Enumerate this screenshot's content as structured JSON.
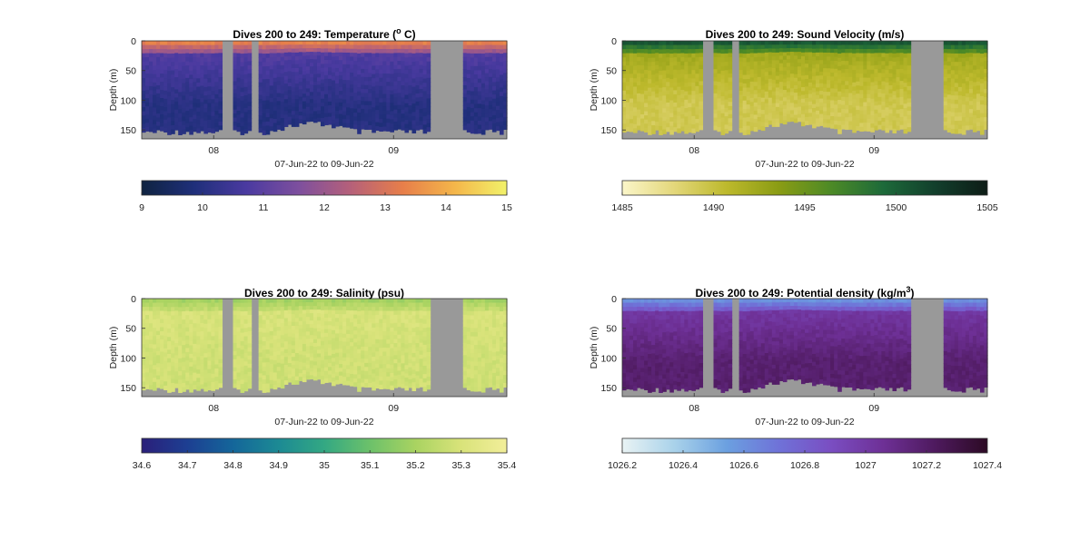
{
  "figure": {
    "background": "#ffffff",
    "gap_color": "#999999"
  },
  "chart_data": [
    {
      "type": "heatmap",
      "title_main": "Dives 200 to 249: Temperature (",
      "title_sup": "o",
      "title_tail": " C)",
      "ylabel": "Depth (m)",
      "xlabel": "07-Jun-22 to 09-Jun-22",
      "y_ticks": [
        "0",
        "50",
        "100",
        "150"
      ],
      "ylim": [
        0,
        165
      ],
      "x_ticks": [
        "08",
        "09"
      ],
      "xlim_days": [
        7.6,
        9.63
      ],
      "colorbar": {
        "min": 9,
        "max": 15,
        "ticks": [
          "9",
          "10",
          "11",
          "12",
          "13",
          "14",
          "15"
        ],
        "colors": [
          "#0f2340",
          "#1f2f7a",
          "#4a3aa0",
          "#7d4f9e",
          "#b5607a",
          "#e77e4a",
          "#f4b64a",
          "#f2f26a"
        ]
      },
      "profile": {
        "surface": 13.6,
        "mid": 10.9,
        "deep": 10.0
      }
    },
    {
      "type": "heatmap",
      "title_main": "Dives 200 to 249: Sound Velocity (m/s)",
      "title_sup": "",
      "title_tail": "",
      "ylabel": "Depth (m)",
      "xlabel": "07-Jun-22 to 09-Jun-22",
      "y_ticks": [
        "0",
        "50",
        "100",
        "150"
      ],
      "ylim": [
        0,
        165
      ],
      "x_ticks": [
        "08",
        "09"
      ],
      "xlim_days": [
        7.6,
        9.63
      ],
      "colorbar": {
        "min": 1485,
        "max": 1505,
        "ticks": [
          "1485",
          "1490",
          "1495",
          "1500",
          "1505"
        ],
        "colors": [
          "#fbf6c9",
          "#e3d77a",
          "#bdb92c",
          "#8a9c14",
          "#4d8a26",
          "#1d6a3a",
          "#123f2c",
          "#0d1c16"
        ]
      },
      "profile": {
        "surface": 1501.5,
        "mid": 1492.5,
        "deep": 1489.3
      }
    },
    {
      "type": "heatmap",
      "title_main": "Dives 200 to 249: Salinity (psu)",
      "title_sup": "",
      "title_tail": "",
      "ylabel": "Depth (m)",
      "xlabel": "07-Jun-22 to 09-Jun-22",
      "y_ticks": [
        "0",
        "50",
        "100",
        "150"
      ],
      "ylim": [
        0,
        165
      ],
      "x_ticks": [
        "08",
        "09"
      ],
      "xlim_days": [
        7.6,
        9.63
      ],
      "colorbar": {
        "min": 34.6,
        "max": 35.4,
        "ticks": [
          "34.6",
          "34.7",
          "34.8",
          "34.9",
          "35",
          "35.1",
          "35.2",
          "35.3",
          "35.4"
        ],
        "colors": [
          "#2a1f7a",
          "#1d3f92",
          "#14669a",
          "#1c8a94",
          "#33a883",
          "#6cc16a",
          "#a9d361",
          "#d9e37a",
          "#f2ee9a"
        ]
      },
      "profile": {
        "surface": 35.18,
        "mid": 35.3,
        "deep": 35.28
      }
    },
    {
      "type": "heatmap",
      "title_main": "Dives 200 to 249: Potential density (kg/m",
      "title_sup": "3",
      "title_tail": ")",
      "ylabel": "Depth (m)",
      "xlabel": "07-Jun-22 to 09-Jun-22",
      "y_ticks": [
        "0",
        "50",
        "100",
        "150"
      ],
      "ylim": [
        0,
        165
      ],
      "x_ticks": [
        "08",
        "09"
      ],
      "xlim_days": [
        7.6,
        9.63
      ],
      "colorbar": {
        "min": 1026.2,
        "max": 1027.4,
        "ticks": [
          "1026.2",
          "1026.4",
          "1026.6",
          "1026.8",
          "1027",
          "1027.2",
          "1027.4"
        ],
        "colors": [
          "#e9f3f4",
          "#a9d2ea",
          "#6ba0e0",
          "#6f72d8",
          "#7a4ec2",
          "#6e3096",
          "#4e1a5e",
          "#2c0a24"
        ]
      },
      "profile": {
        "surface": 1026.55,
        "mid": 1027.0,
        "deep": 1027.18
      }
    }
  ],
  "gaps_days": [
    [
      8.05,
      8.11
    ],
    [
      8.2,
      8.25
    ],
    [
      9.2,
      9.39
    ]
  ]
}
